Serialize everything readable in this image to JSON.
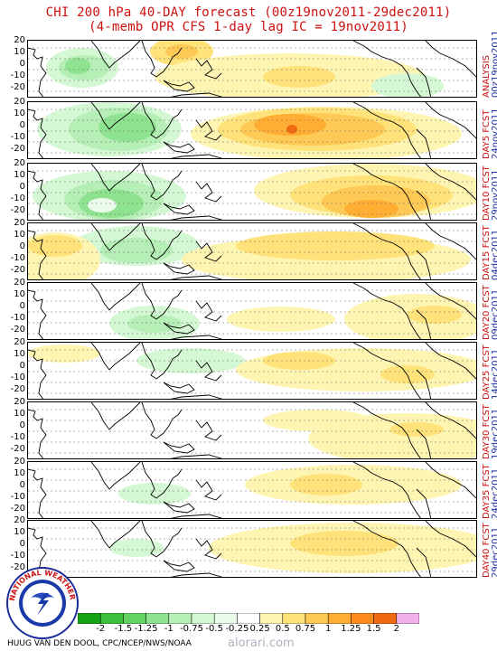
{
  "title": {
    "line1": "CHI 200 hPa 40-DAY forecast (00z19nov2011-29dec2011)",
    "line2": "(4-memb OPR CFS 1-day lag IC = 19nov2011)"
  },
  "y_ticks": [
    "20",
    "10",
    "0",
    "-10",
    "-20"
  ],
  "panels": [
    {
      "label": "ANALYSIS",
      "date": "00z19nov2011"
    },
    {
      "label": "DAY5 FCST",
      "date": "24nov2011"
    },
    {
      "label": "DAY10 FCST",
      "date": "29nov2011"
    },
    {
      "label": "DAY15 FCST",
      "date": "04dec2011"
    },
    {
      "label": "DAY20 FCST",
      "date": "09dec2011"
    },
    {
      "label": "DAY25 FCST",
      "date": "14dec2011"
    },
    {
      "label": "DAY30 FCST",
      "date": "19dec2011"
    },
    {
      "label": "DAY35 FCST",
      "date": "24dec2011"
    },
    {
      "label": "DAY40 FCST",
      "date": "29dec2011"
    }
  ],
  "colorbar": {
    "ticks": [
      "-2",
      "-1.5",
      "-1.25",
      "-1",
      "-0.75",
      "-0.5",
      "-0.25",
      "0.25",
      "0.5",
      "0.75",
      "1",
      "1.25",
      "1.5",
      "2"
    ],
    "colors": [
      "#15a315",
      "#3cbf3c",
      "#63d363",
      "#8fe28f",
      "#b5efb5",
      "#d4f7d4",
      "#ebfbeb",
      "#ffffff",
      "#fff5b3",
      "#ffe27a",
      "#ffc955",
      "#ffad33",
      "#ff8c1a",
      "#f06a10",
      "#f0b0e8"
    ]
  },
  "credit": "HUUG VAN DEN DOOL, CPC/NCEP/NWS/NOAA",
  "watermark": "alorari.com",
  "logo_text": "NATIONAL WEATHER SERVICE"
}
